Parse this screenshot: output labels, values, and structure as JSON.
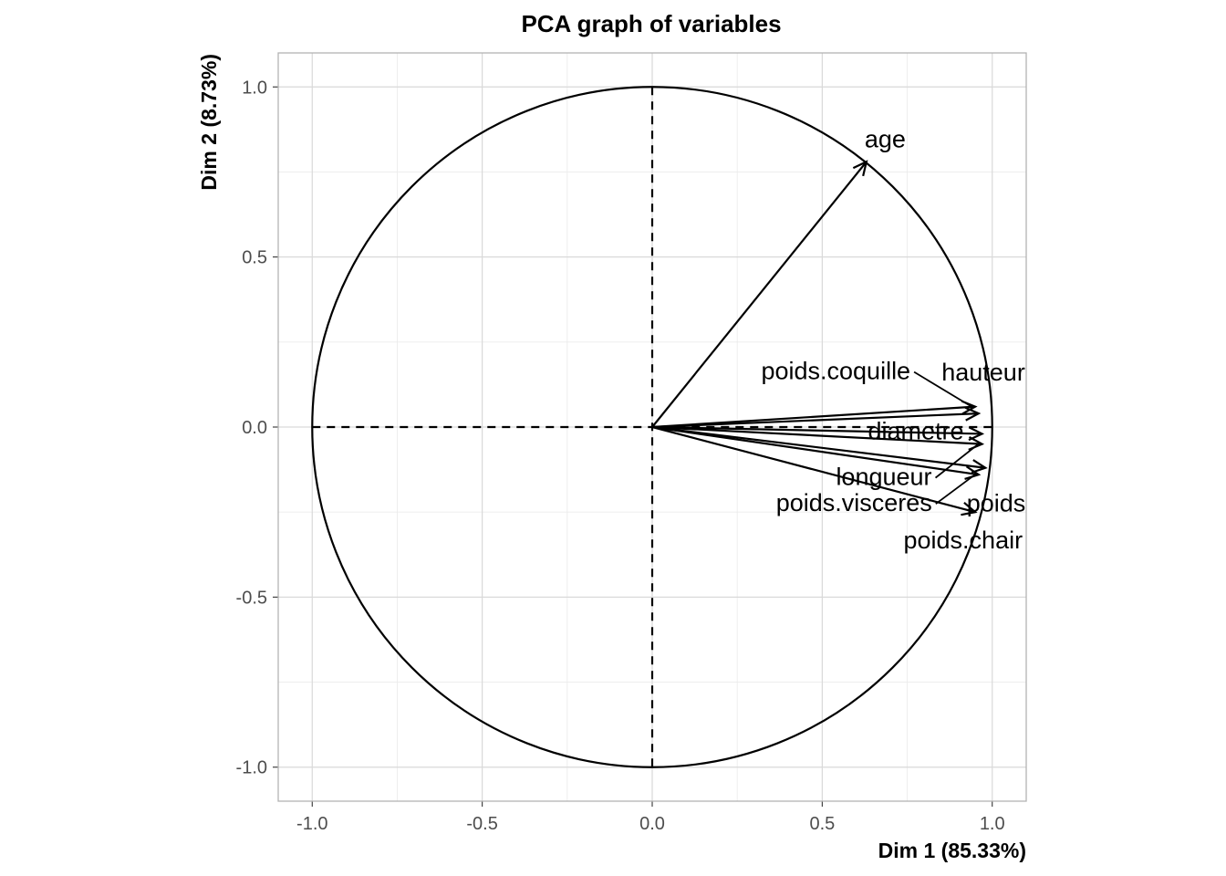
{
  "chart_data": {
    "type": "scatter",
    "subtype": "pca-correlation-circle",
    "title": "PCA graph of variables",
    "xlabel": "Dim 1 (85.33%)",
    "ylabel": "Dim 2 (8.73%)",
    "xlim": [
      -1.1,
      1.1
    ],
    "ylim": [
      -1.1,
      1.1
    ],
    "xticks": [
      -1.0,
      -0.5,
      0.0,
      0.5,
      1.0
    ],
    "yticks": [
      -1.0,
      -0.5,
      0.0,
      0.5,
      1.0
    ],
    "xtick_labels": [
      "-1.0",
      "-0.5",
      "0.0",
      "0.5",
      "1.0"
    ],
    "ytick_labels": [
      "-1.0",
      "-0.5",
      "0.0",
      "0.5",
      "1.0"
    ],
    "grid": true,
    "unit_circle": true,
    "reference_lines": {
      "x": 0,
      "y": 0,
      "style": "dashed"
    },
    "color": "#000000",
    "variables": [
      {
        "name": "age",
        "x": 0.63,
        "y": 0.78,
        "label": "age"
      },
      {
        "name": "hauteur",
        "x": 0.96,
        "y": 0.04,
        "label": "hauteur"
      },
      {
        "name": "poids.coquille",
        "x": 0.95,
        "y": 0.06,
        "label": "poids.coquille"
      },
      {
        "name": "diametre",
        "x": 0.97,
        "y": -0.02,
        "label": "diametre"
      },
      {
        "name": "longueur",
        "x": 0.97,
        "y": -0.05,
        "label": "longueur"
      },
      {
        "name": "poids",
        "x": 0.98,
        "y": -0.12,
        "label": "poids"
      },
      {
        "name": "poids.visceres",
        "x": 0.96,
        "y": -0.14,
        "label": "poids.visceres"
      },
      {
        "name": "poids.chair",
        "x": 0.95,
        "y": -0.25,
        "label": "poids.chair"
      }
    ]
  }
}
